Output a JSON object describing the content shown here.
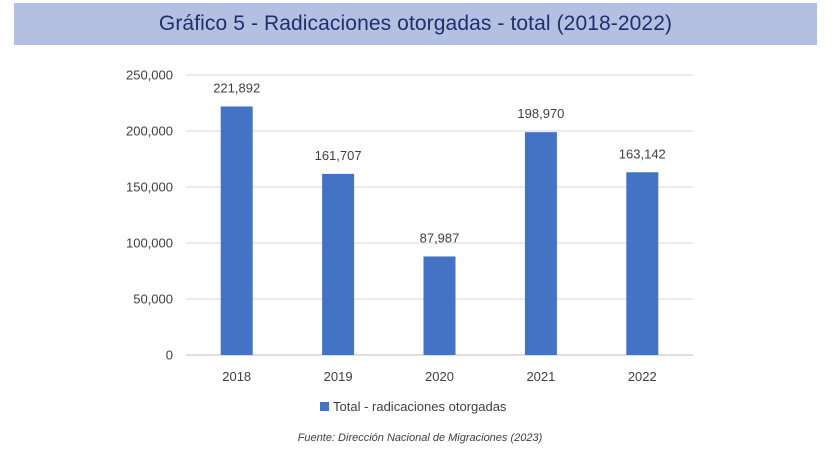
{
  "header": {
    "title": "Gráfico 5 - Radicaciones otorgadas - total (2018-2022)"
  },
  "chart_data": {
    "type": "bar",
    "categories": [
      "2018",
      "2019",
      "2020",
      "2021",
      "2022"
    ],
    "series": [
      {
        "name": "Total - radicaciones otorgadas",
        "values": [
          221892,
          161707,
          87987,
          198970,
          163142
        ]
      }
    ],
    "data_labels": [
      "221,892",
      "161,707",
      "87,987",
      "198,970",
      "163,142"
    ],
    "y_ticks": [
      "0",
      "50,000",
      "100,000",
      "150,000",
      "200,000",
      "250,000"
    ],
    "ylim": [
      0,
      250000
    ],
    "grid": true,
    "legend": "bottom",
    "bar_color": "#4472c4"
  },
  "footer": {
    "source": "Fuente: Dirección Nacional de Migraciones (2023)"
  }
}
